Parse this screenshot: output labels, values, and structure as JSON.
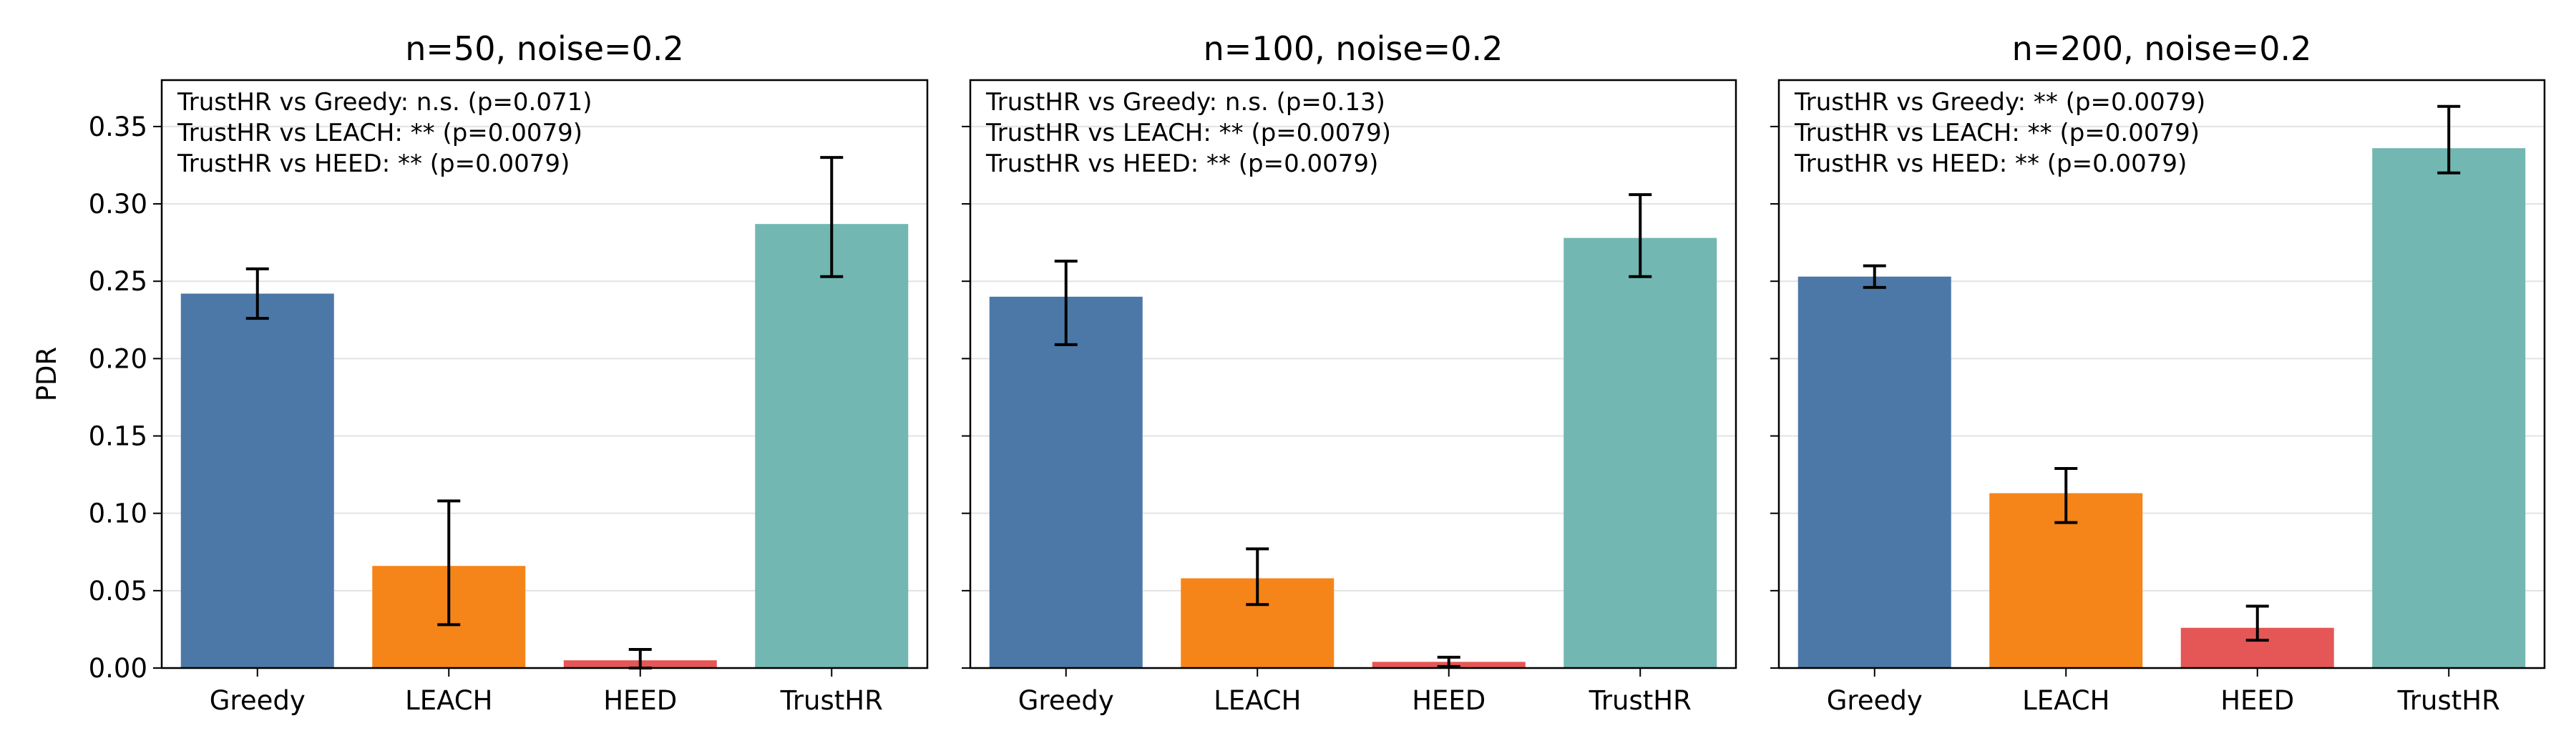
{
  "chart_data": [
    {
      "type": "bar",
      "title": "n=50, noise=0.2",
      "ylabel": "PDR",
      "ylim": [
        0,
        0.38
      ],
      "yticks": [
        "0.00",
        "0.05",
        "0.10",
        "0.15",
        "0.20",
        "0.25",
        "0.30",
        "0.35"
      ],
      "grid": "horizontal",
      "categories": [
        "Greedy",
        "LEACH",
        "HEED",
        "TrustHR"
      ],
      "values": [
        0.242,
        0.066,
        0.005,
        0.287
      ],
      "error_low": [
        0.226,
        0.028,
        0.0,
        0.253
      ],
      "error_high": [
        0.258,
        0.108,
        0.012,
        0.33
      ],
      "colors": [
        "#4c78a8",
        "#f58518",
        "#e45756",
        "#72b7b2"
      ],
      "annotations": [
        "TrustHR vs Greedy: n.s. (p=0.071)",
        "TrustHR vs LEACH: ** (p=0.0079)",
        "TrustHR vs HEED: ** (p=0.0079)"
      ]
    },
    {
      "type": "bar",
      "title": "n=100, noise=0.2",
      "ylabel": "",
      "ylim": [
        0,
        0.38
      ],
      "yticks": [
        "0.00",
        "0.05",
        "0.10",
        "0.15",
        "0.20",
        "0.25",
        "0.30",
        "0.35"
      ],
      "grid": "horizontal",
      "categories": [
        "Greedy",
        "LEACH",
        "HEED",
        "TrustHR"
      ],
      "values": [
        0.24,
        0.058,
        0.004,
        0.278
      ],
      "error_low": [
        0.209,
        0.041,
        0.001,
        0.253
      ],
      "error_high": [
        0.263,
        0.077,
        0.007,
        0.306
      ],
      "colors": [
        "#4c78a8",
        "#f58518",
        "#e45756",
        "#72b7b2"
      ],
      "annotations": [
        "TrustHR vs Greedy: n.s. (p=0.13)",
        "TrustHR vs LEACH: ** (p=0.0079)",
        "TrustHR vs HEED: ** (p=0.0079)"
      ]
    },
    {
      "type": "bar",
      "title": "n=200, noise=0.2",
      "ylabel": "",
      "ylim": [
        0,
        0.38
      ],
      "yticks": [
        "0.00",
        "0.05",
        "0.10",
        "0.15",
        "0.20",
        "0.25",
        "0.30",
        "0.35"
      ],
      "grid": "horizontal",
      "categories": [
        "Greedy",
        "LEACH",
        "HEED",
        "TrustHR"
      ],
      "values": [
        0.253,
        0.113,
        0.026,
        0.336
      ],
      "error_low": [
        0.246,
        0.094,
        0.018,
        0.32
      ],
      "error_high": [
        0.26,
        0.129,
        0.04,
        0.363
      ],
      "colors": [
        "#4c78a8",
        "#f58518",
        "#e45756",
        "#72b7b2"
      ],
      "annotations": [
        "TrustHR vs Greedy: ** (p=0.0079)",
        "TrustHR vs LEACH: ** (p=0.0079)",
        "TrustHR vs HEED: ** (p=0.0079)"
      ]
    }
  ]
}
